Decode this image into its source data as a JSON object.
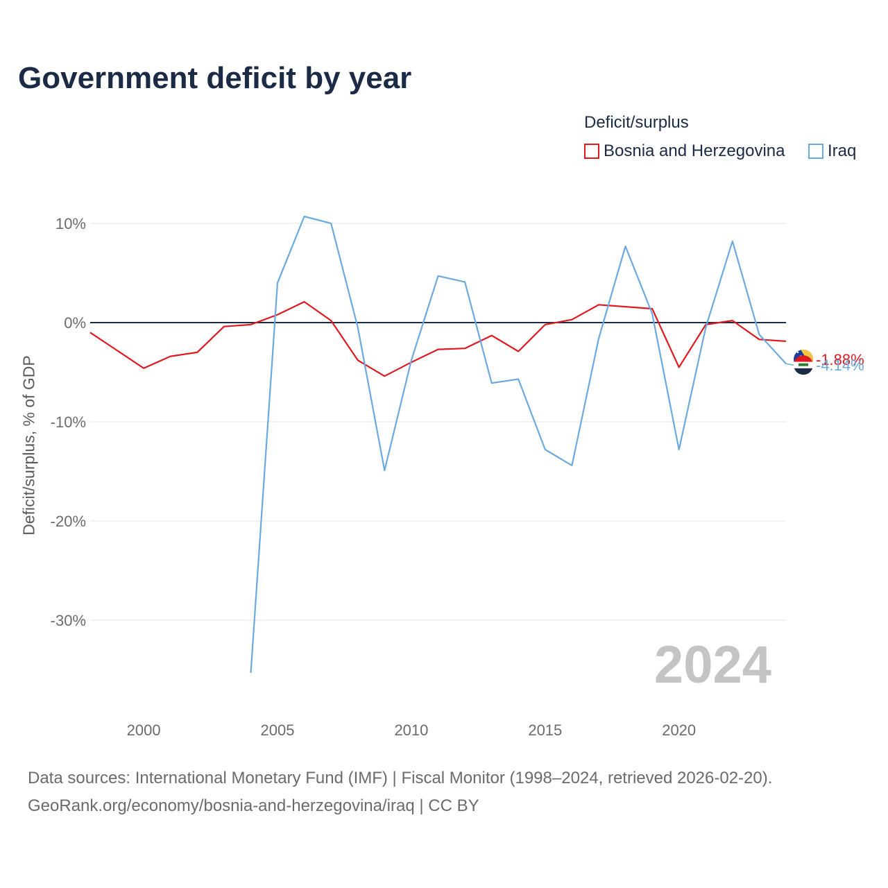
{
  "title": "Government deficit by year",
  "legend": {
    "title": "Deficit/surplus",
    "items": [
      {
        "label": "Bosnia and Herzegovina",
        "color": "#e0191f"
      },
      {
        "label": "Iraq",
        "color": "#6aaae0"
      }
    ]
  },
  "source_line1": "Data sources: International Monetary Fund (IMF) | Fiscal Monitor (1998–2024, retrieved 2026-02-20).",
  "source_line2": "GeoRank.org/economy/bosnia-and-herzegovina/iraq | CC BY",
  "chart_data": {
    "type": "line",
    "title": "Government deficit by year",
    "xlabel": "",
    "ylabel": "Deficit/surplus, % of GDP",
    "xlim": [
      1998,
      2024
    ],
    "ylim": [
      -38,
      11
    ],
    "x_ticks": [
      2000,
      2005,
      2010,
      2015,
      2020
    ],
    "x_tick_labels": [
      "2000",
      "2005",
      "2010",
      "2015",
      "2020"
    ],
    "y_ticks": [
      10,
      0,
      -10,
      -20,
      -30
    ],
    "y_tick_labels": [
      "10%",
      "0%",
      "-10%",
      "-20%",
      "-30%"
    ],
    "grid": true,
    "zero_line": true,
    "watermark_year": "2024",
    "series": [
      {
        "name": "Bosnia and Herzegovina",
        "color": "#e0191f",
        "flag": "bosnia-flag-icon",
        "end_label": "-1.88%",
        "x": [
          1998,
          1999,
          2000,
          2001,
          2002,
          2003,
          2004,
          2005,
          2006,
          2007,
          2008,
          2009,
          2010,
          2011,
          2012,
          2013,
          2014,
          2015,
          2016,
          2017,
          2018,
          2019,
          2020,
          2021,
          2022,
          2023,
          2024
        ],
        "values": [
          -1.0,
          -2.8,
          -4.6,
          -3.4,
          -3.0,
          -0.4,
          -0.2,
          0.8,
          2.1,
          0.2,
          -3.8,
          -5.4,
          -4.0,
          -2.7,
          -2.6,
          -1.3,
          -2.9,
          -0.2,
          0.3,
          1.8,
          1.6,
          1.4,
          -4.5,
          -0.2,
          0.2,
          -1.7,
          -1.88
        ]
      },
      {
        "name": "Iraq",
        "color": "#6aaae0",
        "flag": "iraq-flag-icon",
        "end_label": "-4.14%",
        "x": [
          2004,
          2005,
          2006,
          2007,
          2008,
          2009,
          2010,
          2011,
          2012,
          2013,
          2014,
          2015,
          2016,
          2017,
          2018,
          2019,
          2020,
          2021,
          2022,
          2023,
          2024
        ],
        "values": [
          -35.3,
          4.0,
          10.7,
          10.0,
          -0.5,
          -14.9,
          -3.8,
          4.7,
          4.1,
          -6.1,
          -5.7,
          -12.8,
          -14.4,
          -1.6,
          7.7,
          0.9,
          -12.8,
          -0.5,
          8.2,
          -1.2,
          -4.14
        ]
      }
    ]
  }
}
